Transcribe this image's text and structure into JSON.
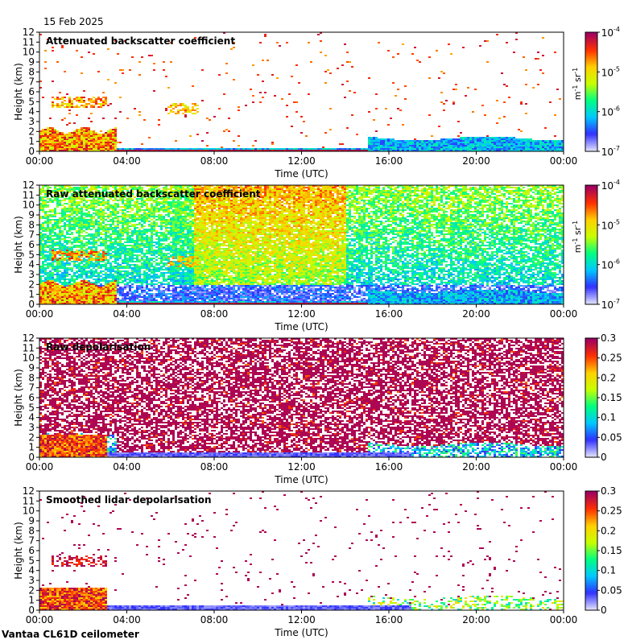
{
  "date": "15 Feb 2025",
  "footer": "Vantaa CL61D ceilometer",
  "colors": {
    "scale": [
      "#e0e0ff",
      "#3030ff",
      "#00c8ff",
      "#00ff80",
      "#c8ff00",
      "#ffd000",
      "#ff3000",
      "#a00060"
    ]
  },
  "chart_data": [
    {
      "type": "heatmap",
      "title": "Attenuated backscatter coefficient",
      "xlabel": "Time (UTC)",
      "ylabel": "Height (km)",
      "x_ticks": [
        "00:00",
        "04:00",
        "08:00",
        "12:00",
        "16:00",
        "20:00",
        "00:00"
      ],
      "y_ticks": [
        "0",
        "1",
        "2",
        "3",
        "4",
        "5",
        "6",
        "7",
        "8",
        "9",
        "10",
        "11",
        "12"
      ],
      "ylim": [
        0,
        12
      ],
      "xlim_hours": [
        0,
        24
      ],
      "colorbar": {
        "scale": "log",
        "ticks": [
          "10",
          "10",
          "10",
          "10"
        ],
        "exponents": [
          "-7",
          "-6",
          "-5",
          "-4"
        ],
        "unit": "m",
        "unit_exp1": "-1",
        "unit2": " sr",
        "unit_exp2": "-1"
      }
    },
    {
      "type": "heatmap",
      "title": "Raw attenuated backscatter coefficient",
      "xlabel": "Time (UTC)",
      "ylabel": "Height (km)",
      "x_ticks": [
        "00:00",
        "04:00",
        "08:00",
        "12:00",
        "16:00",
        "20:00",
        "00:00"
      ],
      "y_ticks": [
        "0",
        "1",
        "2",
        "3",
        "4",
        "5",
        "6",
        "7",
        "8",
        "9",
        "10",
        "11",
        "12"
      ],
      "ylim": [
        0,
        12
      ],
      "xlim_hours": [
        0,
        24
      ],
      "colorbar": {
        "scale": "log",
        "ticks": [
          "10",
          "10",
          "10",
          "10"
        ],
        "exponents": [
          "-7",
          "-6",
          "-5",
          "-4"
        ],
        "unit": "m",
        "unit_exp1": "-1",
        "unit2": " sr",
        "unit_exp2": "-1"
      }
    },
    {
      "type": "heatmap",
      "title": "Raw depolarisation",
      "xlabel": "Time (UTC)",
      "ylabel": "Height (km)",
      "x_ticks": [
        "00:00",
        "04:00",
        "08:00",
        "12:00",
        "16:00",
        "20:00",
        "00:00"
      ],
      "y_ticks": [
        "0",
        "1",
        "2",
        "3",
        "4",
        "5",
        "6",
        "7",
        "8",
        "9",
        "10",
        "11",
        "12"
      ],
      "ylim": [
        0,
        12
      ],
      "xlim_hours": [
        0,
        24
      ],
      "colorbar": {
        "scale": "linear",
        "ticks": [
          "0",
          "0.05",
          "0.1",
          "0.15",
          "0.2",
          "0.25",
          "0.3"
        ],
        "range": [
          0,
          0.3
        ]
      }
    },
    {
      "type": "heatmap",
      "title": "Smoothed lidar depolarisation",
      "xlabel": "Time (UTC)",
      "ylabel": "Height (km)",
      "x_ticks": [
        "00:00",
        "04:00",
        "08:00",
        "12:00",
        "16:00",
        "20:00",
        "00:00"
      ],
      "y_ticks": [
        "0",
        "1",
        "2",
        "3",
        "4",
        "5",
        "6",
        "7",
        "8",
        "9",
        "10",
        "11",
        "12"
      ],
      "ylim": [
        0,
        12
      ],
      "xlim_hours": [
        0,
        24
      ],
      "colorbar": {
        "scale": "linear",
        "ticks": [
          "0",
          "0.05",
          "0.1",
          "0.15",
          "0.2",
          "0.25",
          "0.3"
        ],
        "range": [
          0,
          0.3
        ]
      }
    }
  ]
}
